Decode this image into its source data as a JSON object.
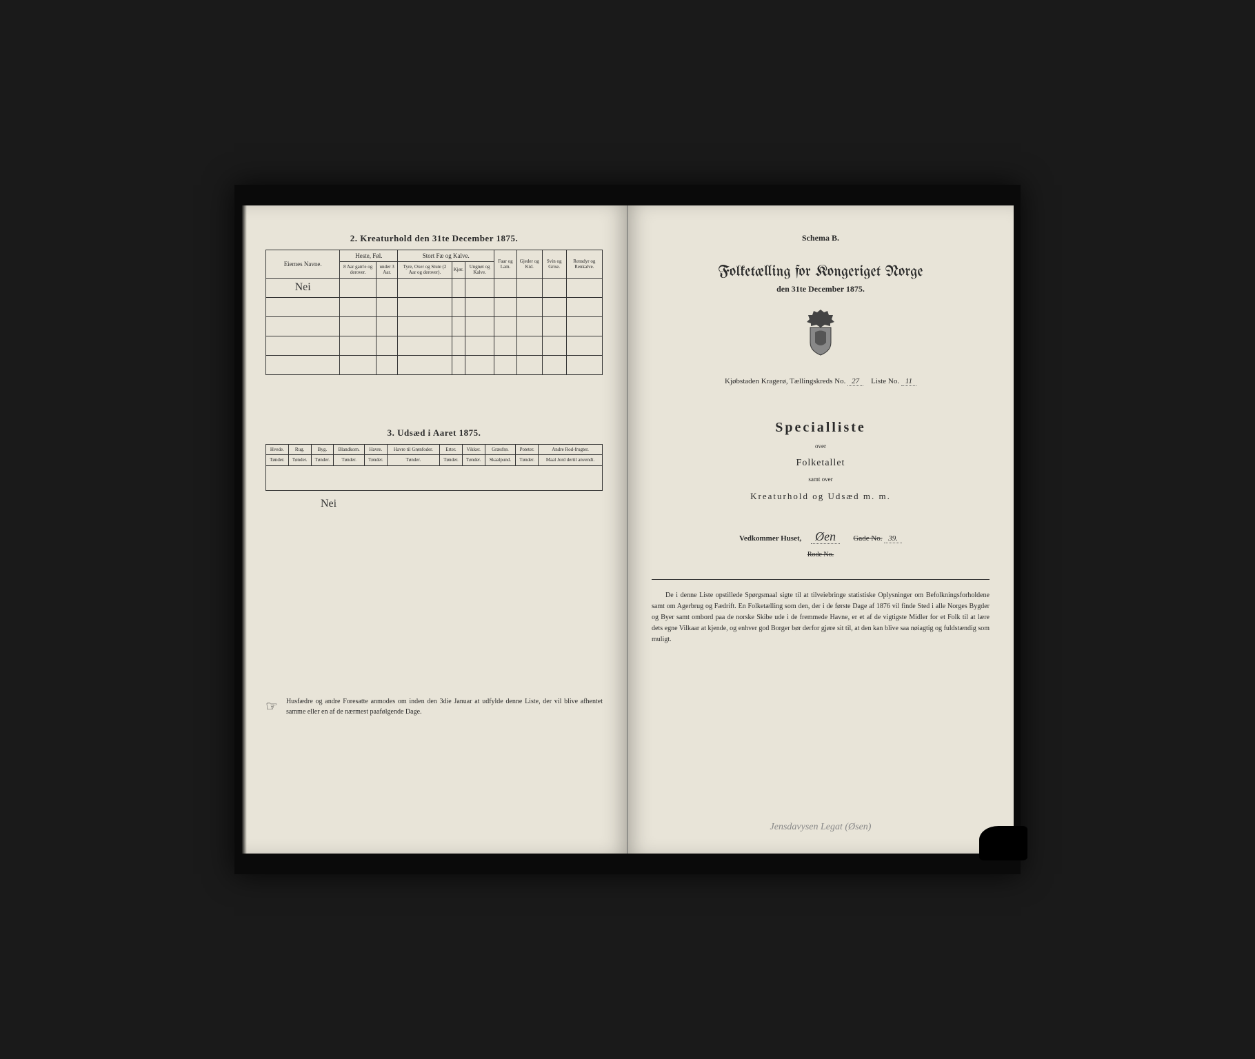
{
  "left": {
    "section2": {
      "title": "2.  Kreaturhold den 31te December 1875.",
      "group_headers": [
        "Eiernes Navne.",
        "Heste, Føl.",
        "Stort Fæ og Kalve.",
        "Faar og Lam.",
        "Gjeder og Kid.",
        "Svin og Grise.",
        "Rensdyr og Renkalve."
      ],
      "sub_headers": {
        "heste": [
          "8 Aar gam'e og derover.",
          "under 3 Aar."
        ],
        "fae": [
          "Tyre, Oxer og Stute (2 Aar og derover).",
          "Kjør.",
          "Ungnøt og Kalve."
        ]
      },
      "handwritten_value": "Nei"
    },
    "section3": {
      "title": "3.  Udsæd i Aaret 1875.",
      "headers": [
        "Hvede.",
        "Rug.",
        "Byg.",
        "Blandkorn.",
        "Havre.",
        "Havre til Grønfoder.",
        "Erter.",
        "Vikker.",
        "Græsfrø.",
        "Poteter.",
        "Andre Rod-frugter."
      ],
      "units": [
        "Tønder.",
        "Tønder.",
        "Tønder.",
        "Tønder.",
        "Tønder.",
        "Tønder.",
        "Tønder.",
        "Tønder.",
        "Skaalpund.",
        "Tønder.",
        "Maal Jord dertil anvendt."
      ],
      "handwritten_value": "Nei"
    },
    "footnote": "Husfædre og andre Foresatte anmodes om inden den 3die Januar at udfylde denne Liste, der vil blive afhentet samme eller en af de nærmest paafølgende Dage."
  },
  "right": {
    "schema": "Schema B.",
    "main_title": "Folketælling for Kongeriget Norge",
    "subtitle": "den 31te December 1875.",
    "location": {
      "prefix": "Kjøbstaden Kragerø,   Tællingskreds No.",
      "kreds_no": "27",
      "liste_label": "Liste No.",
      "liste_no": "11"
    },
    "special_title": "Specialliste",
    "over": "over",
    "folketallet": "Folketallet",
    "samt_over": "samt over",
    "kreatur": "Kreaturhold og Udsæd m. m.",
    "vedkommer": {
      "label": "Vedkommer Huset,",
      "value": "Øen",
      "gade_label": "Gade No.",
      "gade_no": "39.",
      "rode_label": "Rode No."
    },
    "bottom_paragraph": "De i denne Liste opstillede Spørgsmaal sigte til at tilveiebringe statistiske Oplysninger om Befolkningsforholdene samt om Agerbrug og Fædrift.  En Folketælling som den, der i de første Dage af 1876 vil finde Sted i alle Norges Bygder og Byer samt ombord paa de norske Skibe ude i de fremmede Havne, er et af de vigtigste Midler for et Folk til at lære dets egne Vilkaar at kjende, og enhver god Borger bør derfor gjøre sit til, at den kan blive saa nøiagtig og fuldstændig som muligt.",
    "bottom_handwriting": "Jensdavysen Legat (Øsen)"
  },
  "colors": {
    "page_bg": "#e8e4d8",
    "book_bg": "#0a0a0a",
    "text": "#2a2a2a",
    "border": "#333333"
  }
}
